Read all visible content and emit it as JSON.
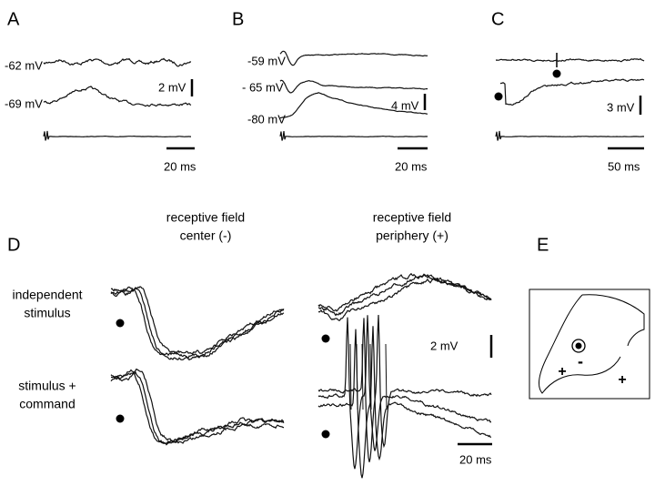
{
  "panels": {
    "A": {
      "label": "A",
      "traces": [
        "-62 mV",
        "-69 mV"
      ],
      "scale": {
        "voltage": "2 mV",
        "time": "20 ms"
      }
    },
    "B": {
      "label": "B",
      "traces": [
        "-59 mV",
        "- 65 mV",
        "-80 mV"
      ],
      "scale": {
        "voltage": "4 mV",
        "time": "20 ms"
      }
    },
    "C": {
      "label": "C",
      "scale": {
        "voltage": "3 mV",
        "time": "50 ms"
      }
    },
    "D": {
      "label": "D",
      "columns": [
        [
          "receptive field",
          "center (-)"
        ],
        [
          "receptive field",
          "periphery (+)"
        ]
      ],
      "rows": [
        [
          "independent",
          "stimulus"
        ],
        [
          "stimulus +",
          "command"
        ]
      ],
      "scale": {
        "voltage": "2 mV",
        "time": "20 ms"
      }
    },
    "E": {
      "label": "E",
      "signs": [
        "+",
        "-",
        "+"
      ]
    }
  }
}
